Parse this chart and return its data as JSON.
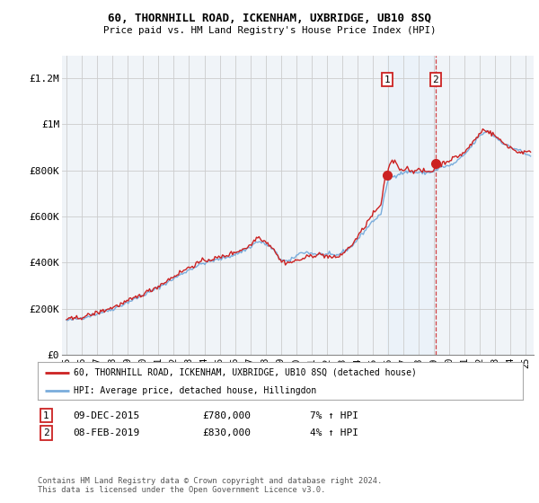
{
  "title": "60, THORNHILL ROAD, ICKENHAM, UXBRIDGE, UB10 8SQ",
  "subtitle": "Price paid vs. HM Land Registry's House Price Index (HPI)",
  "legend_line1": "60, THORNHILL ROAD, ICKENHAM, UXBRIDGE, UB10 8SQ (detached house)",
  "legend_line2": "HPI: Average price, detached house, Hillingdon",
  "annotation1": {
    "num": "1",
    "date": "09-DEC-2015",
    "price": "£780,000",
    "hpi": "7% ↑ HPI"
  },
  "annotation2": {
    "num": "2",
    "date": "08-FEB-2019",
    "price": "£830,000",
    "hpi": "4% ↑ HPI"
  },
  "footer": "Contains HM Land Registry data © Crown copyright and database right 2024.\nThis data is licensed under the Open Government Licence v3.0.",
  "hpi_color": "#7aaddc",
  "price_color": "#cc2222",
  "annotation_color": "#cc2222",
  "vline_color": "#cc2222",
  "shade_color": "#ddeeff",
  "background_color": "#f0f4f8",
  "sale1_year": 2015.92,
  "sale1_price": 780000,
  "sale2_year": 2019.1,
  "sale2_price": 830000,
  "ylim": [
    0,
    1300000
  ],
  "yticks": [
    0,
    200000,
    400000,
    600000,
    800000,
    1000000,
    1200000
  ],
  "ytick_labels": [
    "£0",
    "£200K",
    "£400K",
    "£600K",
    "£800K",
    "£1M",
    "£1.2M"
  ],
  "xmin": 1995.0,
  "xmax": 2025.5
}
